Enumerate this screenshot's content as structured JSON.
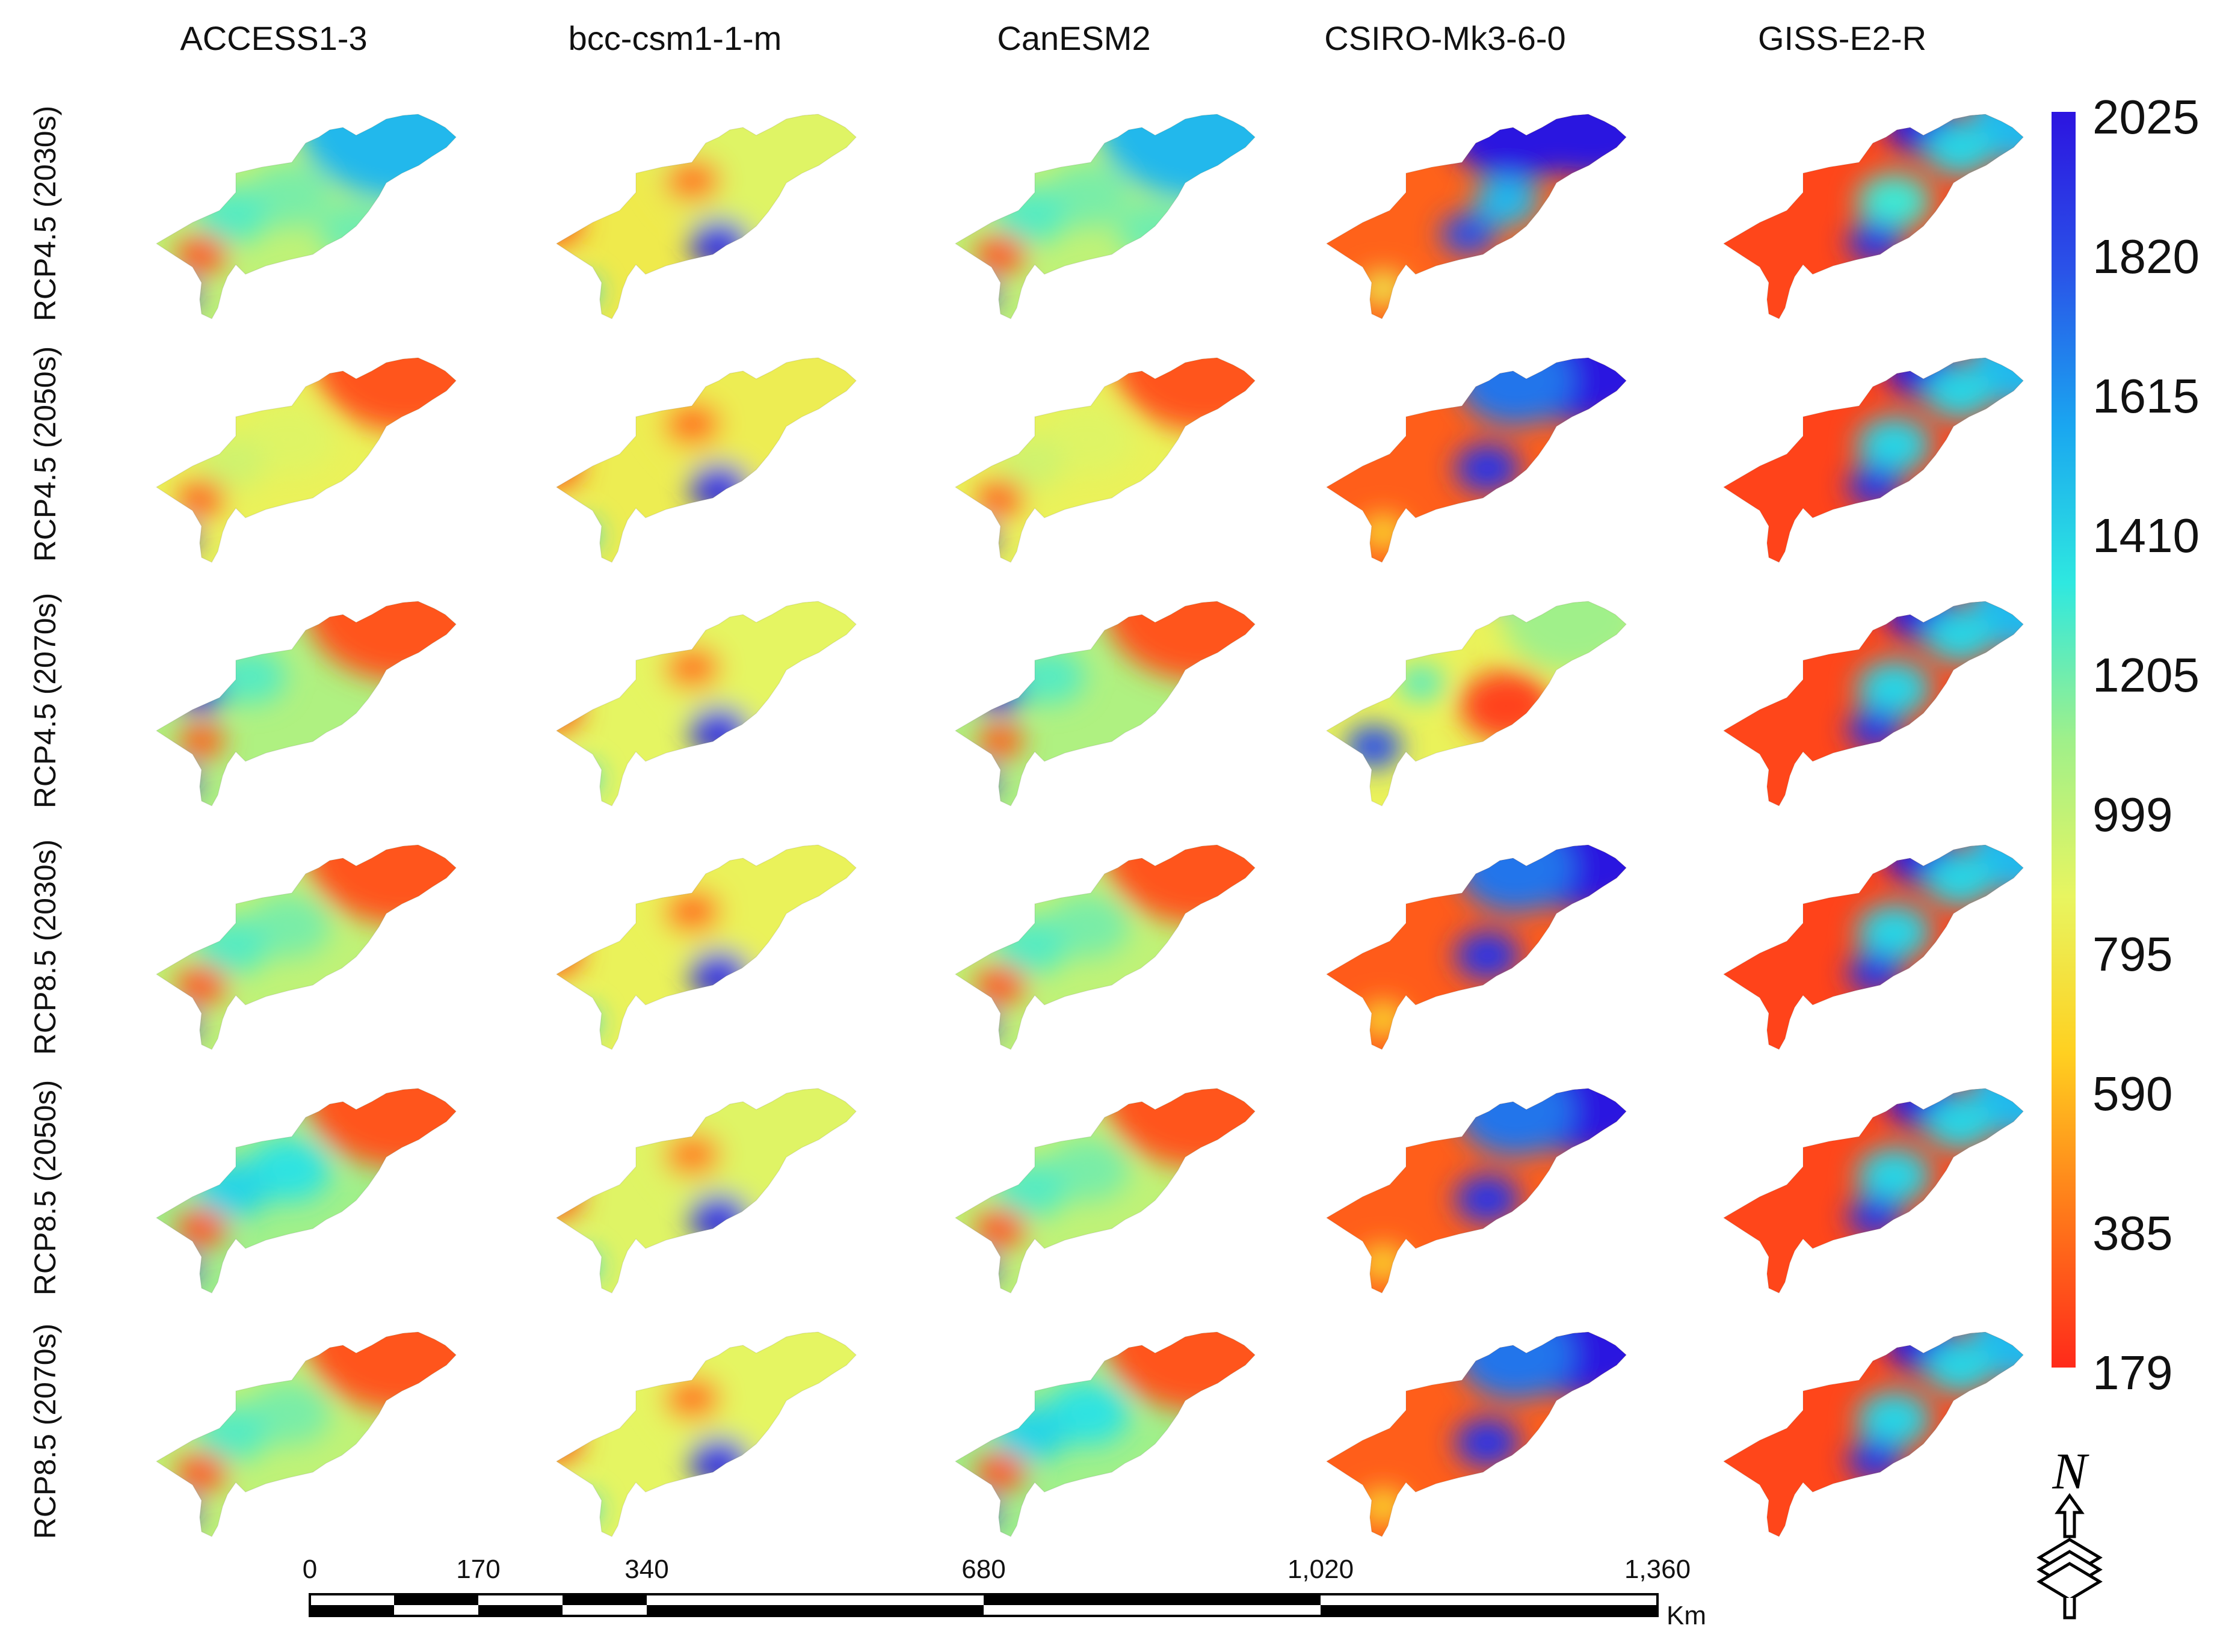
{
  "models": [
    "ACCESS1-3",
    "bcc-csm1-1-m",
    "CanESM2",
    "CSIRO-Mk3-6-0",
    "GISS-E2-R"
  ],
  "scenarios": [
    "RCP4.5 (2030s)",
    "RCP4.5 (2050s)",
    "RCP4.5 (2070s)",
    "RCP8.5 (2030s)",
    "RCP8.5 (2050s)",
    "RCP8.5 (2070s)"
  ],
  "legend": {
    "ticks": [
      "2025",
      "1820",
      "1615",
      "1410",
      "1205",
      "999",
      "795",
      "590",
      "385",
      "179"
    ],
    "min": 179,
    "max": 2025,
    "colormap": [
      "#ff2a1a",
      "#ff7a1a",
      "#ffd020",
      "#e8f560",
      "#9ff08a",
      "#2ee8e0",
      "#1aa6f0",
      "#2a52e8",
      "#2c14e0"
    ]
  },
  "scale_bar": {
    "labels": [
      "0",
      "170",
      "340",
      "680",
      "1,020",
      "1,360"
    ],
    "unit": "Km"
  },
  "north_arrow": {
    "letter": "N",
    "icon": "north-arrow-icon"
  },
  "map_panels": [
    [
      {
        "bg": 1000,
        "hot": [
          [
            0.6,
            -0.7,
            1500,
            0.45
          ],
          [
            0.0,
            -0.05,
            1180,
            0.18
          ],
          [
            0.35,
            0.25,
            1200,
            0.16
          ],
          [
            -0.3,
            0.12,
            1250,
            0.16
          ],
          [
            -0.46,
            0.45,
            300,
            0.11
          ],
          [
            -0.58,
            0.8,
            2025,
            0.08
          ]
        ]
      },
      {
        "bg": 800,
        "hot": [
          [
            0.5,
            -0.5,
            900,
            0.6
          ],
          [
            0.02,
            -0.18,
            400,
            0.12
          ],
          [
            -0.72,
            0.18,
            300,
            0.13
          ],
          [
            0.16,
            0.36,
            1950,
            0.13
          ],
          [
            -0.58,
            0.78,
            1400,
            0.09
          ]
        ]
      },
      {
        "bg": 1000,
        "hot": [
          [
            0.6,
            -0.7,
            1500,
            0.45
          ],
          [
            0.0,
            -0.05,
            1180,
            0.18
          ],
          [
            0.35,
            0.25,
            1200,
            0.16
          ],
          [
            -0.3,
            0.12,
            1250,
            0.16
          ],
          [
            -0.46,
            0.45,
            300,
            0.11
          ],
          [
            -0.58,
            0.8,
            2025,
            0.08
          ]
        ]
      },
      {
        "bg": 340,
        "hot": [
          [
            0.7,
            -0.85,
            2025,
            0.42
          ],
          [
            0.3,
            -0.6,
            2025,
            0.28
          ],
          [
            0.25,
            0.0,
            1500,
            0.14
          ],
          [
            0.05,
            0.28,
            1800,
            0.12
          ],
          [
            -0.4,
            0.75,
            800,
            0.1
          ]
        ]
      },
      {
        "bg": 260,
        "hot": [
          [
            0.9,
            -0.7,
            1500,
            0.25
          ],
          [
            0.35,
            -0.65,
            2000,
            0.16
          ],
          [
            0.55,
            -0.45,
            1400,
            0.15
          ],
          [
            0.2,
            0.0,
            1300,
            0.16
          ],
          [
            0.1,
            0.35,
            1900,
            0.12
          ]
        ]
      }
    ],
    [
      {
        "bg": 850,
        "hot": [
          [
            0.62,
            -0.72,
            300,
            0.4
          ],
          [
            0.0,
            -0.05,
            900,
            0.2
          ],
          [
            -0.3,
            0.15,
            950,
            0.15
          ],
          [
            -0.46,
            0.45,
            320,
            0.1
          ],
          [
            -0.58,
            0.8,
            2025,
            0.08
          ]
        ]
      },
      {
        "bg": 820,
        "hot": [
          [
            0.5,
            -0.5,
            820,
            0.6
          ],
          [
            0.02,
            -0.18,
            380,
            0.12
          ],
          [
            -0.72,
            0.18,
            300,
            0.13
          ],
          [
            0.16,
            0.36,
            1950,
            0.13
          ],
          [
            -0.58,
            0.78,
            1400,
            0.09
          ]
        ]
      },
      {
        "bg": 850,
        "hot": [
          [
            0.62,
            -0.72,
            300,
            0.4
          ],
          [
            0.0,
            -0.05,
            900,
            0.2
          ],
          [
            -0.3,
            0.15,
            950,
            0.15
          ],
          [
            -0.46,
            0.45,
            320,
            0.1
          ],
          [
            -0.58,
            0.8,
            2025,
            0.08
          ]
        ]
      },
      {
        "bg": 330,
        "hot": [
          [
            0.65,
            -0.8,
            2025,
            0.4
          ],
          [
            0.3,
            -0.55,
            1700,
            0.25
          ],
          [
            0.15,
            0.2,
            1900,
            0.14
          ],
          [
            -0.4,
            0.75,
            700,
            0.1
          ]
        ]
      },
      {
        "bg": 250,
        "hot": [
          [
            0.9,
            -0.7,
            1500,
            0.25
          ],
          [
            0.35,
            -0.65,
            2000,
            0.16
          ],
          [
            0.55,
            -0.45,
            1400,
            0.15
          ],
          [
            0.2,
            0.0,
            1400,
            0.16
          ],
          [
            0.1,
            0.35,
            1900,
            0.12
          ]
        ]
      }
    ],
    [
      {
        "bg": 1050,
        "hot": [
          [
            0.6,
            -0.7,
            300,
            0.42
          ],
          [
            -0.46,
            0.0,
            2000,
            0.12
          ],
          [
            -0.46,
            0.45,
            320,
            0.1
          ],
          [
            -0.2,
            -0.1,
            1250,
            0.15
          ],
          [
            -0.58,
            0.8,
            2025,
            0.08
          ]
        ]
      },
      {
        "bg": 880,
        "hot": [
          [
            0.5,
            -0.5,
            880,
            0.6
          ],
          [
            0.02,
            -0.18,
            400,
            0.12
          ],
          [
            -0.72,
            0.18,
            300,
            0.13
          ],
          [
            0.16,
            0.36,
            1950,
            0.13
          ],
          [
            -0.58,
            0.78,
            1400,
            0.09
          ]
        ]
      },
      {
        "bg": 1050,
        "hot": [
          [
            0.6,
            -0.7,
            300,
            0.42
          ],
          [
            -0.46,
            0.0,
            2000,
            0.12
          ],
          [
            -0.46,
            0.45,
            320,
            0.1
          ],
          [
            -0.2,
            -0.1,
            1250,
            0.15
          ],
          [
            -0.58,
            0.8,
            2025,
            0.08
          ]
        ]
      },
      {
        "bg": 850,
        "hot": [
          [
            0.35,
            -0.85,
            1600,
            0.15
          ],
          [
            0.6,
            -0.6,
            1100,
            0.3
          ],
          [
            0.25,
            0.15,
            250,
            0.2
          ],
          [
            -0.45,
            0.5,
            1800,
            0.12
          ],
          [
            -0.2,
            -0.05,
            1250,
            0.1
          ]
        ]
      },
      {
        "bg": 260,
        "hot": [
          [
            0.9,
            -0.7,
            1500,
            0.25
          ],
          [
            0.35,
            -0.65,
            2000,
            0.16
          ],
          [
            0.55,
            -0.45,
            1400,
            0.15
          ],
          [
            0.2,
            0.0,
            1400,
            0.16
          ],
          [
            0.1,
            0.35,
            1900,
            0.12
          ]
        ]
      }
    ],
    [
      {
        "bg": 1000,
        "hot": [
          [
            0.6,
            -0.7,
            300,
            0.42
          ],
          [
            0.0,
            -0.05,
            1180,
            0.18
          ],
          [
            -0.3,
            0.12,
            1250,
            0.16
          ],
          [
            -0.46,
            0.45,
            300,
            0.11
          ],
          [
            -0.58,
            0.8,
            2025,
            0.08
          ]
        ]
      },
      {
        "bg": 850,
        "hot": [
          [
            0.5,
            -0.5,
            850,
            0.6
          ],
          [
            0.02,
            -0.18,
            380,
            0.12
          ],
          [
            -0.72,
            0.18,
            300,
            0.13
          ],
          [
            0.16,
            0.36,
            1950,
            0.13
          ],
          [
            -0.58,
            0.78,
            1400,
            0.09
          ]
        ]
      },
      {
        "bg": 1000,
        "hot": [
          [
            0.6,
            -0.7,
            300,
            0.42
          ],
          [
            0.0,
            -0.05,
            1180,
            0.18
          ],
          [
            -0.3,
            0.12,
            1250,
            0.16
          ],
          [
            -0.46,
            0.45,
            300,
            0.11
          ],
          [
            -0.58,
            0.8,
            2025,
            0.08
          ]
        ]
      },
      {
        "bg": 320,
        "hot": [
          [
            0.65,
            -0.8,
            2025,
            0.4
          ],
          [
            0.3,
            -0.55,
            1700,
            0.25
          ],
          [
            0.15,
            0.2,
            1900,
            0.14
          ],
          [
            -0.4,
            0.75,
            700,
            0.1
          ]
        ]
      },
      {
        "bg": 250,
        "hot": [
          [
            0.9,
            -0.7,
            1500,
            0.25
          ],
          [
            0.35,
            -0.65,
            2000,
            0.16
          ],
          [
            0.55,
            -0.45,
            1400,
            0.15
          ],
          [
            0.2,
            0.0,
            1400,
            0.16
          ],
          [
            0.1,
            0.35,
            1900,
            0.12
          ]
        ]
      }
    ],
    [
      {
        "bg": 1100,
        "hot": [
          [
            0.6,
            -0.7,
            300,
            0.42
          ],
          [
            0.0,
            -0.05,
            1350,
            0.18
          ],
          [
            -0.3,
            0.12,
            1400,
            0.16
          ],
          [
            -0.46,
            0.45,
            300,
            0.11
          ],
          [
            -0.58,
            0.8,
            2025,
            0.08
          ]
        ]
      },
      {
        "bg": 900,
        "hot": [
          [
            0.5,
            -0.5,
            900,
            0.6
          ],
          [
            0.02,
            -0.18,
            420,
            0.12
          ],
          [
            -0.72,
            0.18,
            300,
            0.13
          ],
          [
            0.16,
            0.36,
            1950,
            0.13
          ],
          [
            -0.58,
            0.78,
            1400,
            0.09
          ]
        ]
      },
      {
        "bg": 1000,
        "hot": [
          [
            0.6,
            -0.7,
            300,
            0.42
          ],
          [
            0.0,
            -0.05,
            1180,
            0.18
          ],
          [
            -0.3,
            0.12,
            1250,
            0.16
          ],
          [
            -0.46,
            0.45,
            300,
            0.11
          ],
          [
            -0.58,
            0.8,
            2025,
            0.08
          ]
        ]
      },
      {
        "bg": 330,
        "hot": [
          [
            0.65,
            -0.8,
            2025,
            0.4
          ],
          [
            0.3,
            -0.55,
            1700,
            0.25
          ],
          [
            0.15,
            0.2,
            1900,
            0.14
          ],
          [
            -0.4,
            0.75,
            700,
            0.1
          ]
        ]
      },
      {
        "bg": 260,
        "hot": [
          [
            0.9,
            -0.7,
            1500,
            0.25
          ],
          [
            0.35,
            -0.65,
            2000,
            0.16
          ],
          [
            0.55,
            -0.45,
            1400,
            0.15
          ],
          [
            0.2,
            0.0,
            1400,
            0.16
          ],
          [
            0.1,
            0.35,
            1900,
            0.12
          ]
        ]
      }
    ],
    [
      {
        "bg": 1000,
        "hot": [
          [
            0.6,
            -0.7,
            300,
            0.42
          ],
          [
            0.0,
            -0.05,
            1180,
            0.18
          ],
          [
            -0.3,
            0.12,
            1250,
            0.16
          ],
          [
            -0.46,
            0.45,
            300,
            0.11
          ],
          [
            -0.58,
            0.8,
            2025,
            0.08
          ]
        ]
      },
      {
        "bg": 880,
        "hot": [
          [
            0.5,
            -0.5,
            880,
            0.6
          ],
          [
            0.02,
            -0.18,
            400,
            0.12
          ],
          [
            -0.72,
            0.18,
            300,
            0.13
          ],
          [
            0.16,
            0.36,
            1950,
            0.13
          ],
          [
            -0.58,
            0.78,
            1400,
            0.09
          ]
        ]
      },
      {
        "bg": 1100,
        "hot": [
          [
            0.6,
            -0.7,
            300,
            0.42
          ],
          [
            0.0,
            -0.05,
            1350,
            0.18
          ],
          [
            -0.3,
            0.12,
            1400,
            0.16
          ],
          [
            -0.46,
            0.45,
            300,
            0.11
          ],
          [
            -0.58,
            0.8,
            2025,
            0.08
          ]
        ]
      },
      {
        "bg": 330,
        "hot": [
          [
            0.65,
            -0.8,
            2025,
            0.4
          ],
          [
            0.3,
            -0.55,
            1700,
            0.25
          ],
          [
            0.15,
            0.2,
            1900,
            0.14
          ],
          [
            -0.4,
            0.75,
            700,
            0.1
          ]
        ]
      },
      {
        "bg": 260,
        "hot": [
          [
            0.9,
            -0.7,
            1500,
            0.25
          ],
          [
            0.35,
            -0.65,
            2000,
            0.16
          ],
          [
            0.55,
            -0.45,
            1400,
            0.15
          ],
          [
            0.2,
            0.0,
            1400,
            0.16
          ],
          [
            0.1,
            0.35,
            1900,
            0.12
          ]
        ]
      }
    ]
  ]
}
